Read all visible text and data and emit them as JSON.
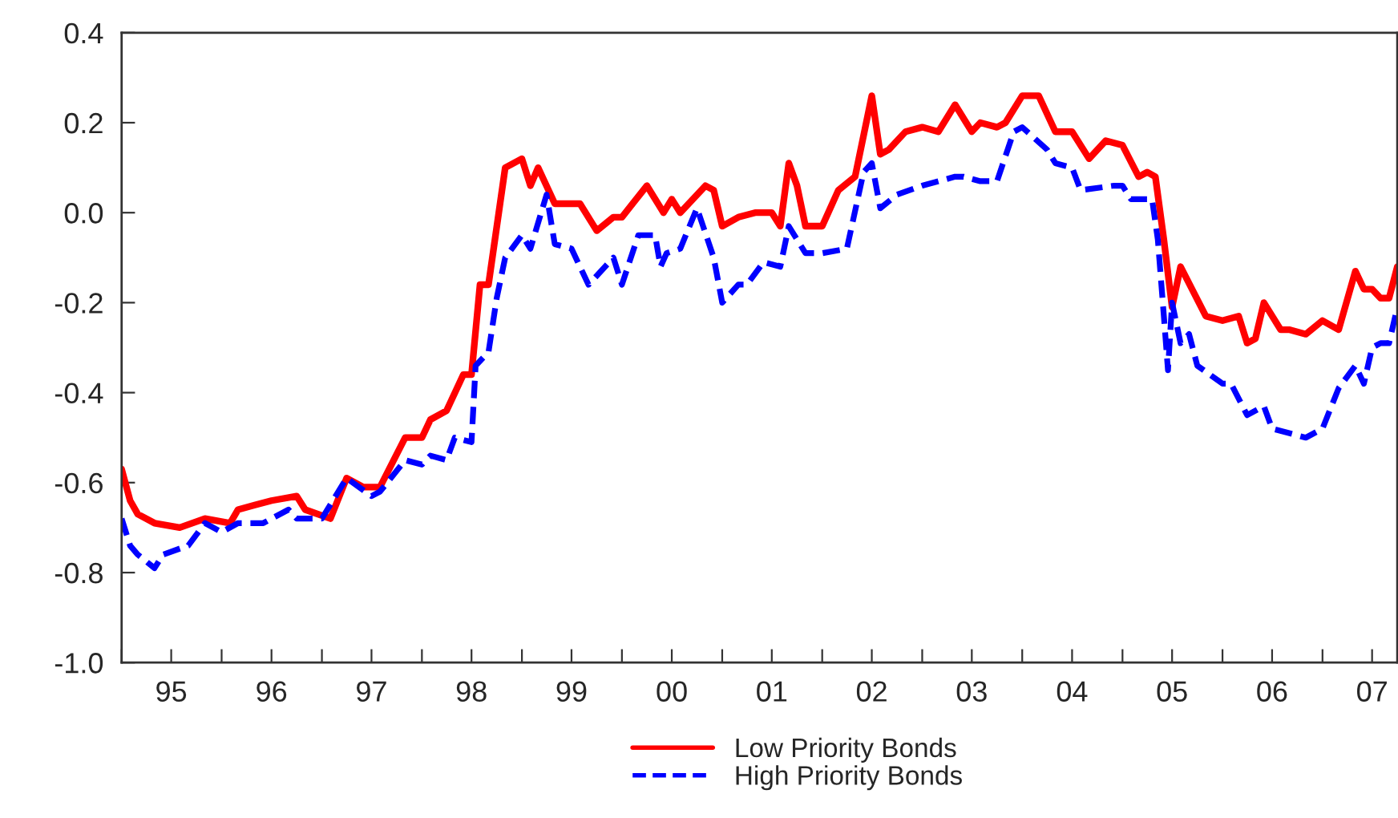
{
  "chart_data": {
    "type": "line",
    "xlim": [
      "1995-01",
      "2007-10"
    ],
    "xticks": [
      {
        "value": "1995-01-01",
        "label": null
      },
      {
        "value": "1995-07-01",
        "label": "95"
      },
      {
        "value": "1996-01-01",
        "label": null
      },
      {
        "value": "1996-07-01",
        "label": "96"
      },
      {
        "value": "1997-01-01",
        "label": null
      },
      {
        "value": "1997-07-01",
        "label": "97"
      },
      {
        "value": "1998-01-01",
        "label": null
      },
      {
        "value": "1998-07-01",
        "label": "98"
      },
      {
        "value": "1999-01-01",
        "label": null
      },
      {
        "value": "1999-07-01",
        "label": "99"
      },
      {
        "value": "2000-01-01",
        "label": null
      },
      {
        "value": "2000-07-01",
        "label": "00"
      },
      {
        "value": "2001-01-01",
        "label": null
      },
      {
        "value": "2001-07-01",
        "label": "01"
      },
      {
        "value": "2002-01-01",
        "label": null
      },
      {
        "value": "2002-07-01",
        "label": "02"
      },
      {
        "value": "2003-01-01",
        "label": null
      },
      {
        "value": "2003-07-01",
        "label": "03"
      },
      {
        "value": "2004-01-01",
        "label": null
      },
      {
        "value": "2004-07-01",
        "label": "04"
      },
      {
        "value": "2005-01-01",
        "label": null
      },
      {
        "value": "2005-07-01",
        "label": "05"
      },
      {
        "value": "2006-01-01",
        "label": null
      },
      {
        "value": "2006-07-01",
        "label": "06"
      },
      {
        "value": "2007-01-01",
        "label": null
      },
      {
        "value": "2007-07-01",
        "label": "07"
      }
    ],
    "ylim": [
      -1.0,
      0.4
    ],
    "yticks": [
      {
        "value": -1.0,
        "label": "-1.0"
      },
      {
        "value": -0.8,
        "label": "-0.8"
      },
      {
        "value": -0.6,
        "label": "-0.6"
      },
      {
        "value": -0.4,
        "label": "-0.4"
      },
      {
        "value": -0.2,
        "label": "-0.2"
      },
      {
        "value": 0,
        "label": "0.0"
      },
      {
        "value": 0.2,
        "label": "0.2"
      },
      {
        "value": 0.4,
        "label": "0.4"
      }
    ],
    "grid": false,
    "legend": "bottom",
    "series": [
      {
        "name": "Low Priority Bonds",
        "color": "#ff0000",
        "line_style": "solid",
        "x": [
          "1995-01",
          "1995-02",
          "1995-03",
          "1995-05",
          "1995-08",
          "1995-11",
          "1996-02",
          "1996-03",
          "1996-05",
          "1996-07",
          "1996-10",
          "1996-11",
          "1997-02",
          "1997-04",
          "1997-06",
          "1997-08",
          "1997-11",
          "1998-01",
          "1998-02",
          "1998-04",
          "1998-06",
          "1998-07",
          "1998-08",
          "1998-09",
          "1998-11",
          "1999-01",
          "1999-02",
          "1999-03",
          "1999-05",
          "1999-08",
          "1999-10",
          "1999-12",
          "2000-01",
          "2000-04",
          "2000-06",
          "2000-07",
          "2000-08",
          "2000-11",
          "2000-12",
          "2001-01",
          "2001-03",
          "2001-05",
          "2001-07",
          "2001-08",
          "2001-09",
          "2001-10",
          "2001-11",
          "2002-01",
          "2002-03",
          "2002-05",
          "2002-07",
          "2002-08",
          "2002-09",
          "2002-11",
          "2003-01",
          "2003-03",
          "2003-05",
          "2003-07",
          "2003-08",
          "2003-10",
          "2003-11",
          "2004-01",
          "2004-03",
          "2004-05",
          "2004-07",
          "2004-09",
          "2004-11",
          "2005-01",
          "2005-03",
          "2005-04",
          "2005-05",
          "2005-06",
          "2005-07",
          "2005-08",
          "2005-11",
          "2006-01",
          "2006-03",
          "2006-04",
          "2006-05",
          "2006-06",
          "2006-08",
          "2006-09",
          "2006-11",
          "2007-01",
          "2007-03",
          "2007-05",
          "2007-06",
          "2007-07",
          "2007-08",
          "2007-09",
          "2007-10"
        ],
        "values": [
          -0.57,
          -0.64,
          -0.67,
          -0.69,
          -0.7,
          -0.68,
          -0.69,
          -0.66,
          -0.65,
          -0.64,
          -0.63,
          -0.66,
          -0.68,
          -0.59,
          -0.61,
          -0.61,
          -0.5,
          -0.5,
          -0.46,
          -0.44,
          -0.36,
          -0.36,
          -0.16,
          -0.16,
          0.1,
          0.12,
          0.06,
          0.1,
          0.02,
          0.02,
          -0.04,
          -0.01,
          -0.01,
          0.06,
          0.0,
          0.03,
          0.0,
          0.06,
          0.05,
          -0.03,
          -0.01,
          0.0,
          0.0,
          -0.03,
          0.11,
          0.06,
          -0.03,
          -0.03,
          0.05,
          0.08,
          0.26,
          0.13,
          0.14,
          0.18,
          0.19,
          0.18,
          0.24,
          0.18,
          0.2,
          0.19,
          0.2,
          0.26,
          0.26,
          0.18,
          0.18,
          0.12,
          0.16,
          0.15,
          0.08,
          0.09,
          0.08,
          -0.06,
          -0.21,
          -0.12,
          -0.23,
          -0.24,
          -0.23,
          -0.29,
          -0.28,
          -0.2,
          -0.26,
          -0.26,
          -0.27,
          -0.24,
          -0.26,
          -0.13,
          -0.17,
          -0.17,
          -0.19,
          -0.19,
          -0.12
        ]
      },
      {
        "name": "High Priority Bonds",
        "color": "#0000ff",
        "line_style": "dashed",
        "x": [
          "1995-01",
          "1995-02",
          "1995-03",
          "1995-05",
          "1995-06",
          "1995-09",
          "1995-11",
          "1996-01",
          "1996-03",
          "1996-06",
          "1996-09",
          "1996-10",
          "1997-01",
          "1997-04",
          "1997-07",
          "1997-08",
          "1997-11",
          "1998-01",
          "1998-02",
          "1998-04",
          "1998-05",
          "1998-07-01",
          "1998-07-16",
          "1998-09",
          "1998-10",
          "1998-11",
          "1999-01",
          "1999-02",
          "1999-04",
          "1999-05",
          "1999-07",
          "1999-09",
          "1999-12",
          "2000-01",
          "2000-03",
          "2000-05",
          "2000-05-21",
          "2000-06-12",
          "2000-08",
          "2000-10",
          "2000-12",
          "2001-01",
          "2001-03",
          "2001-04",
          "2001-06",
          "2001-08",
          "2001-09",
          "2001-11",
          "2002-01",
          "2002-04",
          "2002-06",
          "2002-07",
          "2002-08",
          "2002-10",
          "2003-01",
          "2003-05",
          "2003-06",
          "2003-08",
          "2003-10",
          "2003-12",
          "2004-01",
          "2004-04",
          "2004-05",
          "2004-07",
          "2004-08",
          "2004-12",
          "2005-01",
          "2005-02",
          "2005-04-19",
          "2005-05-10",
          "2005-06-01",
          "2005-06-16",
          "2005-07",
          "2005-08",
          "2005-09",
          "2005-10",
          "2006-01",
          "2006-02",
          "2006-04",
          "2006-06",
          "2006-07",
          "2006-11",
          "2007-01",
          "2007-03",
          "2007-05",
          "2007-06",
          "2007-07",
          "2007-08",
          "2007-09",
          "2007-10"
        ],
        "values": [
          -0.68,
          -0.74,
          -0.76,
          -0.79,
          -0.76,
          -0.74,
          -0.69,
          -0.71,
          -0.69,
          -0.69,
          -0.66,
          -0.68,
          -0.68,
          -0.59,
          -0.63,
          -0.62,
          -0.55,
          -0.56,
          -0.54,
          -0.55,
          -0.5,
          -0.51,
          -0.34,
          -0.31,
          -0.19,
          -0.1,
          -0.05,
          -0.08,
          0.04,
          -0.07,
          -0.08,
          -0.16,
          -0.1,
          -0.16,
          -0.05,
          -0.05,
          -0.12,
          -0.09,
          -0.08,
          0.01,
          -0.1,
          -0.2,
          -0.16,
          -0.16,
          -0.11,
          -0.12,
          -0.03,
          -0.09,
          -0.09,
          -0.08,
          0.09,
          0.11,
          0.01,
          0.04,
          0.06,
          0.08,
          0.08,
          0.07,
          0.07,
          0.18,
          0.19,
          0.14,
          0.11,
          0.1,
          0.05,
          0.06,
          0.06,
          0.03,
          0.03,
          -0.06,
          -0.23,
          -0.35,
          -0.2,
          -0.29,
          -0.27,
          -0.34,
          -0.38,
          -0.38,
          -0.45,
          -0.43,
          -0.48,
          -0.5,
          -0.48,
          -0.39,
          -0.34,
          -0.38,
          -0.3,
          -0.29,
          -0.29,
          -0.21
        ]
      }
    ]
  }
}
